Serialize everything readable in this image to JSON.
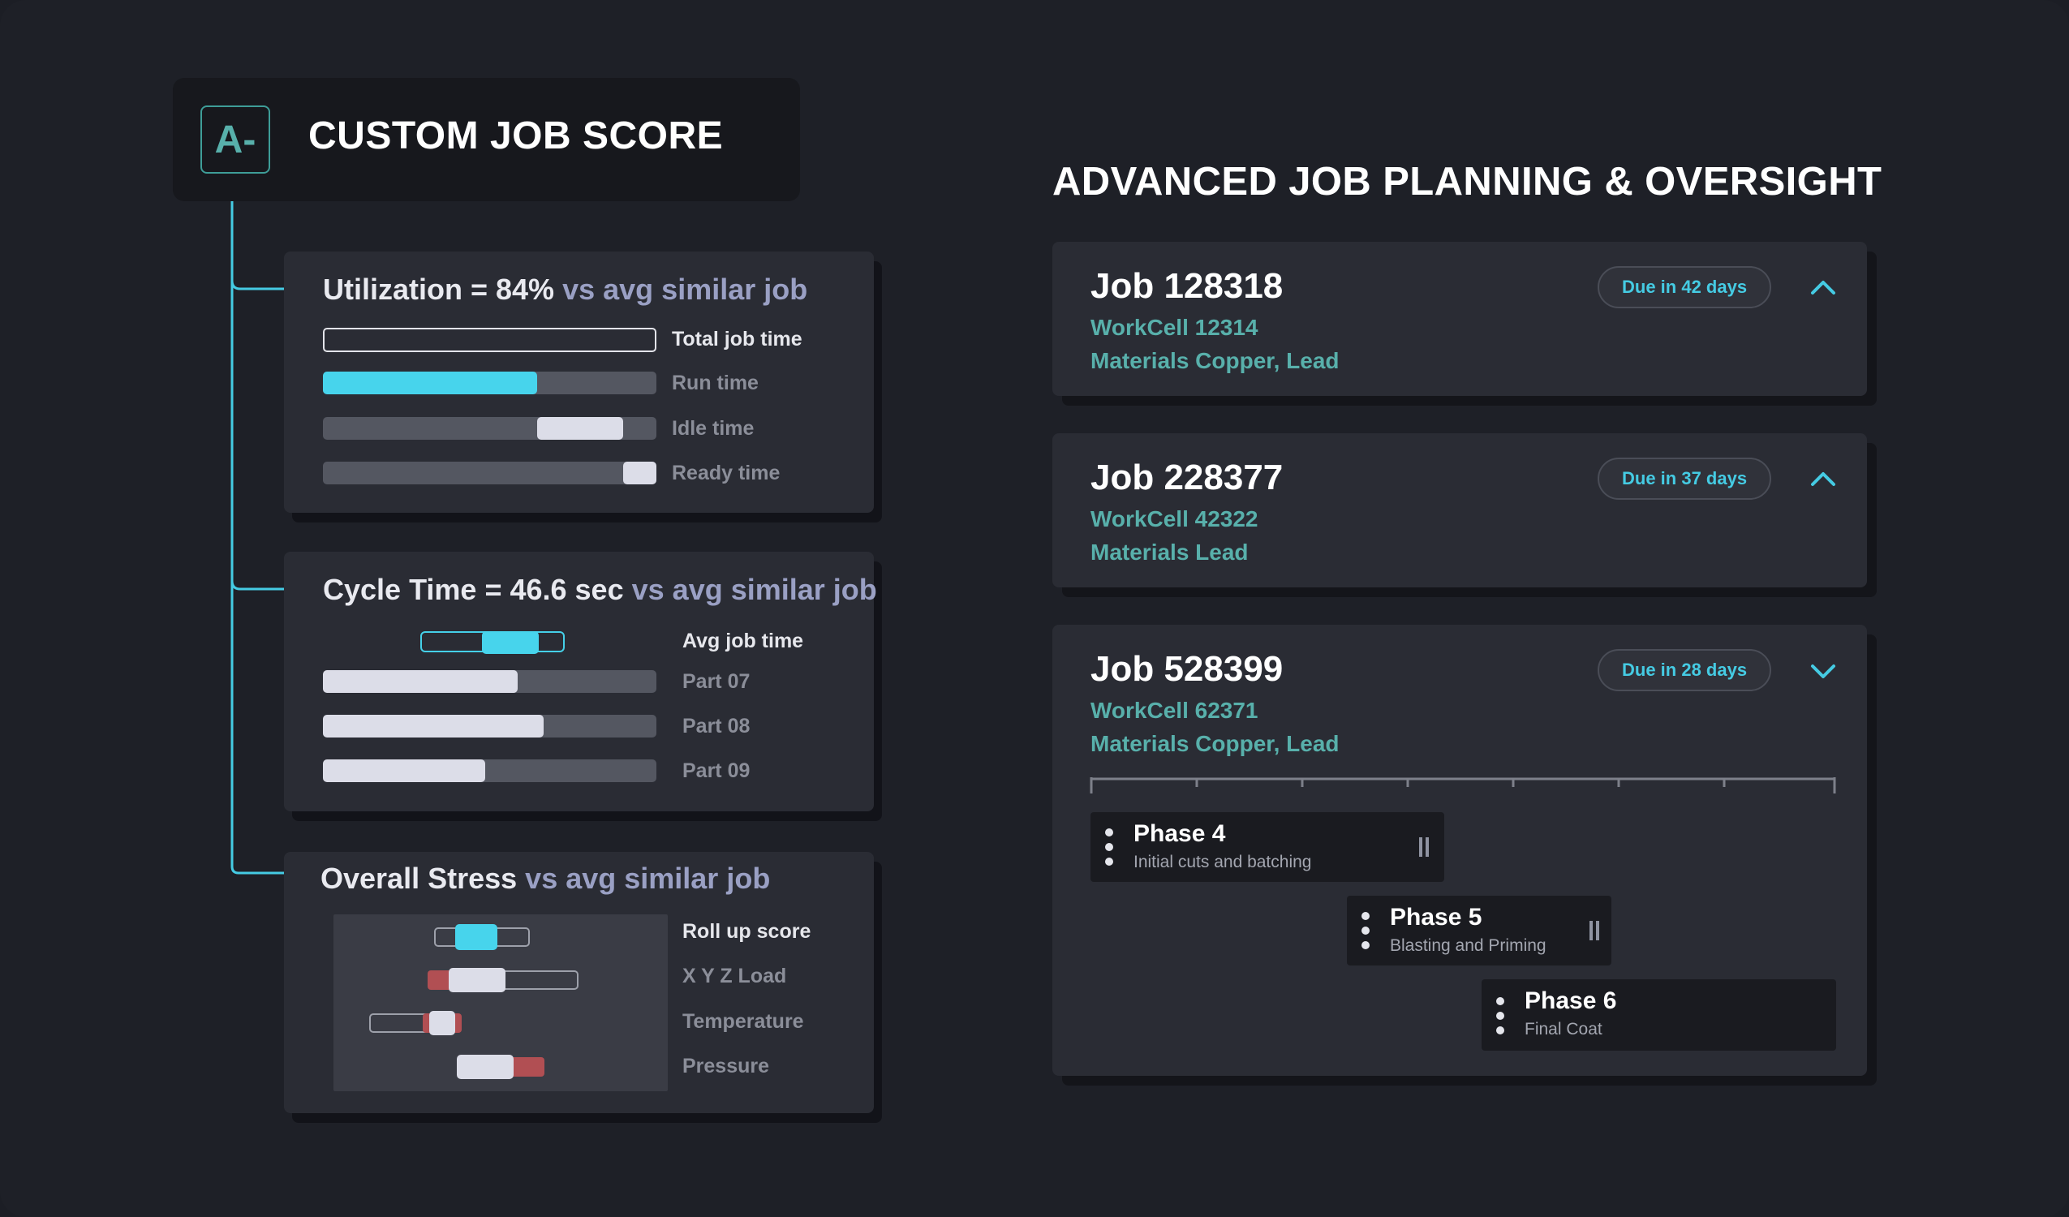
{
  "score": {
    "grade": "A-",
    "title": "CUSTOM JOB SCORE"
  },
  "utilization": {
    "title_main": "Utilization = 84%",
    "title_muted": "vs avg similar job",
    "rows": [
      {
        "label": "Total job time",
        "fill": 1.0
      },
      {
        "label": "Run time",
        "fill": 0.64
      },
      {
        "label": "Idle time",
        "fill_start": 0.64,
        "fill_end": 0.9
      },
      {
        "label": "Ready time",
        "fill_start": 0.9,
        "fill_end": 1.0
      }
    ]
  },
  "cycle_time": {
    "title_main": "Cycle Time = 46.6 sec",
    "title_muted": "vs avg similar job",
    "rows": [
      {
        "label": "Avg job time"
      },
      {
        "label": "Part 07",
        "fill": 0.59
      },
      {
        "label": "Part 08",
        "fill": 0.67
      },
      {
        "label": "Part 09",
        "fill": 0.49
      }
    ]
  },
  "stress": {
    "title_main": "Overall Stress",
    "title_muted": "vs avg similar job",
    "rows": [
      {
        "label": "Roll up score"
      },
      {
        "label": "X Y Z Load"
      },
      {
        "label": "Temperature"
      },
      {
        "label": "Pressure"
      }
    ]
  },
  "planning": {
    "title": "ADVANCED JOB PLANNING & OVERSIGHT",
    "jobs": [
      {
        "title": "Job 128318",
        "workcell": "WorkCell 12314",
        "materials": "Materials Copper, Lead",
        "due": "Due in 42 days",
        "chevron": "chevron-up-icon"
      },
      {
        "title": "Job 228377",
        "workcell": "WorkCell 42322",
        "materials": "Materials Lead",
        "due": "Due in 37 days",
        "chevron": "chevron-up-icon"
      },
      {
        "title": "Job 528399",
        "workcell": "WorkCell 62371",
        "materials": "Materials Copper, Lead",
        "due": "Due in 28 days",
        "chevron": "chevron-down-icon"
      }
    ],
    "phases": [
      {
        "title": "Phase 4",
        "subtitle": "Initial cuts and batching"
      },
      {
        "title": "Phase 5",
        "subtitle": "Blasting and Priming"
      },
      {
        "title": "Phase 6",
        "subtitle": "Final Coat"
      }
    ]
  },
  "colors": {
    "accent": "#47d4ec",
    "teal": "#58b0ab",
    "warn": "#b14f53"
  }
}
